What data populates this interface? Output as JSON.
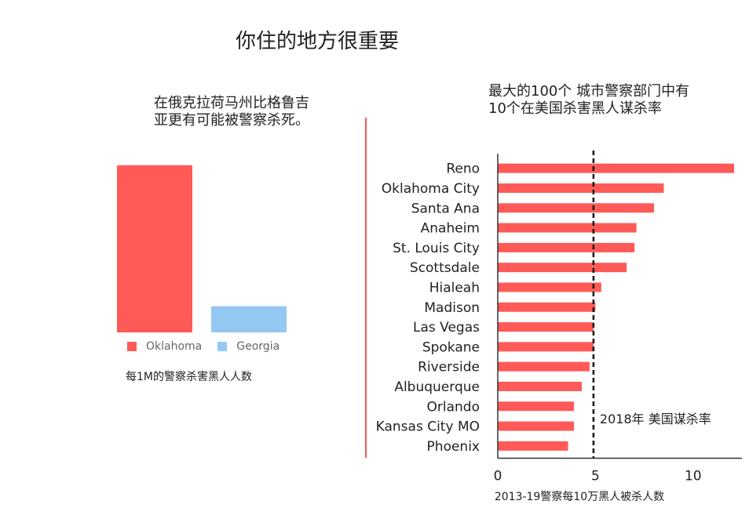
{
  "title": "你住的地方很重要",
  "left_panel": {
    "subtitle": "在俄克拉荷马州比格鲁吉\n亚更有可能被警察杀死。",
    "caption": "每1M的警察杀害黑人人数",
    "legend": [
      {
        "label": "Oklahoma",
        "color": "#ff5a57"
      },
      {
        "label": "Georgia",
        "color": "#95c7f3"
      }
    ]
  },
  "right_panel": {
    "subtitle": "最大的100个 城市警察部门中有\n10个在美国杀害黑人谋杀率",
    "reference_label": "2018年 美国谋杀率"
  },
  "chart_data": [
    {
      "type": "bar",
      "categories": [
        "Oklahoma",
        "Georgia"
      ],
      "values": [
        10.2,
        1.6
      ],
      "ylim": [
        0,
        11
      ],
      "colors": [
        "#ff5a57",
        "#95c7f3"
      ],
      "legend_position": "bottom",
      "grid": false
    },
    {
      "type": "bar",
      "orientation": "horizontal",
      "categories": [
        "Reno",
        "Oklahoma City",
        "Santa Ana",
        "Anaheim",
        "St. Louis City",
        "Scottsdale",
        "Hialeah",
        "Madison",
        "Las Vegas",
        "Spokane",
        "Riverside",
        "Albuquerque",
        "Orlando",
        "Kansas City MO",
        "Phoenix"
      ],
      "values": [
        12.1,
        8.5,
        8.0,
        7.1,
        7.0,
        6.6,
        5.3,
        5.0,
        4.9,
        4.9,
        4.7,
        4.3,
        3.9,
        3.9,
        3.6
      ],
      "xlabel": "2013-19警察每10万黑人被杀人数",
      "xlim": [
        0,
        12.5
      ],
      "xticks": [
        0,
        5,
        10
      ],
      "reference_line": 4.9,
      "color": "#ff5a57",
      "grid": false
    }
  ]
}
